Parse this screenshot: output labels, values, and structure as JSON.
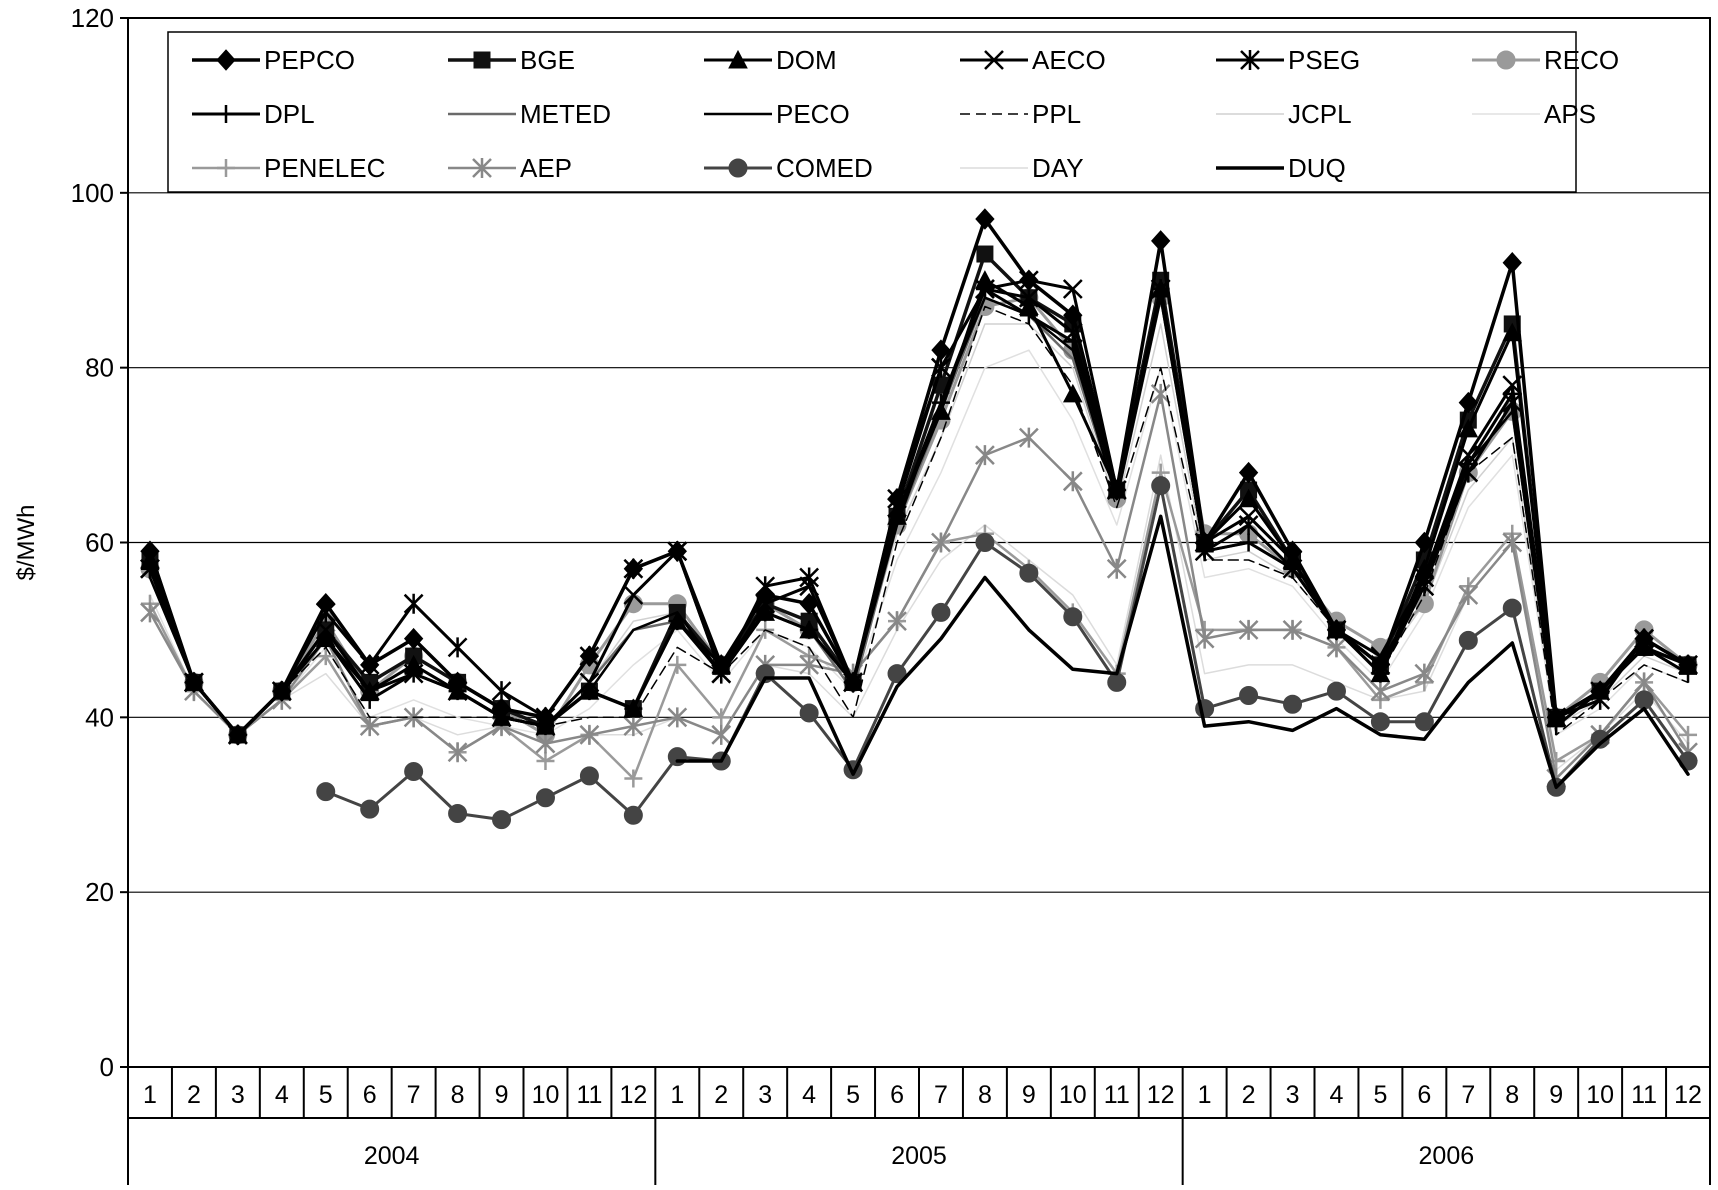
{
  "chart_data": {
    "type": "line",
    "title": "",
    "xlabel": "",
    "ylabel": "$/MWh",
    "ylim": [
      0,
      120
    ],
    "yticks": [
      0,
      20,
      40,
      60,
      80,
      100,
      120
    ],
    "grid": "horizontal",
    "legend_position": "top",
    "years": [
      {
        "label": "2004",
        "months": 12
      },
      {
        "label": "2005",
        "months": 12
      },
      {
        "label": "2006",
        "months": 12
      }
    ],
    "categories": [
      "1",
      "2",
      "3",
      "4",
      "5",
      "6",
      "7",
      "8",
      "9",
      "10",
      "11",
      "12",
      "1",
      "2",
      "3",
      "4",
      "5",
      "6",
      "7",
      "8",
      "9",
      "10",
      "11",
      "12",
      "1",
      "2",
      "3",
      "4",
      "5",
      "6",
      "7",
      "8",
      "9",
      "10",
      "11",
      "12"
    ],
    "series": [
      {
        "name": "PEPCO",
        "color": "#000000",
        "width": 3.5,
        "dash": "",
        "marker": "diamond",
        "values": [
          59,
          44,
          38,
          43,
          53,
          46,
          49,
          44,
          41,
          40,
          47,
          57,
          59,
          46,
          54,
          53,
          44,
          65,
          82,
          97,
          90,
          86,
          66,
          94.5,
          60,
          68,
          59,
          50,
          46,
          60,
          76,
          92,
          40,
          43,
          49,
          46
        ]
      },
      {
        "name": "BGE",
        "color": "#111111",
        "width": 3.5,
        "dash": "",
        "marker": "square",
        "values": [
          58,
          44,
          38,
          43,
          50,
          44,
          47,
          44,
          41,
          39,
          43,
          41,
          52,
          46,
          53,
          51,
          44,
          63,
          78,
          93,
          88,
          85,
          66,
          90,
          60,
          66,
          58,
          50,
          46,
          58,
          74,
          85,
          40,
          43,
          48,
          46
        ]
      },
      {
        "name": "DOM",
        "color": "#000000",
        "width": 3,
        "dash": "",
        "marker": "triangle",
        "values": [
          58,
          44,
          38,
          43,
          49,
          43,
          46,
          43,
          40,
          39,
          43,
          41,
          51,
          46,
          52,
          50,
          44,
          63,
          75,
          90,
          87,
          77,
          66,
          89,
          60,
          65,
          58,
          50,
          45,
          57,
          73,
          84,
          40,
          43,
          48,
          46
        ]
      },
      {
        "name": "AECO",
        "color": "#000000",
        "width": 3,
        "dash": "",
        "marker": "x",
        "values": [
          57,
          44,
          38,
          43,
          50,
          43,
          45,
          43,
          40,
          39,
          44,
          54,
          59,
          45,
          53,
          55,
          44,
          64,
          80,
          89,
          90,
          89,
          66,
          89,
          60,
          63,
          58,
          50,
          47,
          56,
          70,
          78,
          40,
          43,
          49,
          46
        ]
      },
      {
        "name": "PSEG",
        "color": "#000000",
        "width": 3,
        "dash": "",
        "marker": "star",
        "values": [
          57,
          44,
          38,
          43,
          52,
          46,
          53,
          48,
          43,
          40,
          47,
          57,
          59,
          45,
          55,
          56,
          44,
          65,
          80,
          89,
          88,
          84,
          66,
          89,
          59,
          62,
          57,
          50,
          46,
          55,
          68,
          76,
          40,
          42,
          49,
          46
        ]
      },
      {
        "name": "RECO",
        "color": "#9a9a9a",
        "width": 3,
        "dash": "",
        "marker": "circle",
        "values": [
          57,
          44,
          38,
          43,
          51,
          43,
          47,
          44,
          41,
          38,
          46,
          53,
          53,
          46,
          53,
          50,
          44,
          62,
          74,
          87,
          88,
          82,
          65,
          88,
          61,
          61,
          57,
          51,
          48,
          53,
          68,
          75,
          40,
          44,
          50,
          46
        ]
      },
      {
        "name": "DPL",
        "color": "#000000",
        "width": 3,
        "dash": "",
        "marker": "plus",
        "values": [
          57,
          44,
          38,
          43,
          49,
          42,
          45,
          43,
          40,
          39,
          43,
          41,
          51,
          45,
          52,
          50,
          44,
          63,
          76,
          89,
          86,
          83,
          66,
          89,
          59,
          60,
          57,
          50,
          45,
          56,
          69,
          77,
          39,
          43,
          48,
          45
        ]
      },
      {
        "name": "METED",
        "color": "#6a6a6a",
        "width": 2.5,
        "dash": "",
        "marker": "none",
        "values": [
          56,
          44,
          38,
          43,
          49,
          43,
          46,
          43,
          40,
          39,
          44,
          50,
          51,
          45,
          52,
          50,
          43,
          62,
          75,
          88,
          86,
          81,
          65,
          88,
          59,
          60,
          57,
          50,
          45,
          55,
          69,
          75,
          39,
          43,
          48,
          45
        ]
      },
      {
        "name": "PECO",
        "color": "#000000",
        "width": 2.5,
        "dash": "",
        "marker": "none",
        "values": [
          56,
          44,
          38,
          43,
          49,
          43,
          45,
          43,
          40,
          39,
          43,
          50,
          52,
          45,
          52,
          50,
          44,
          62,
          76,
          88,
          86,
          82,
          65,
          88,
          59,
          60,
          57,
          50,
          45,
          55,
          69,
          75,
          39,
          43,
          48,
          45
        ]
      },
      {
        "name": "PPL",
        "color": "#000000",
        "width": 1.5,
        "dash": "10 6",
        "marker": "none",
        "values": [
          56,
          44,
          38,
          43,
          48,
          40,
          40,
          40,
          40,
          39,
          40,
          40,
          48,
          45,
          50,
          48,
          40,
          60,
          72,
          87,
          85,
          78,
          64,
          80,
          58,
          58,
          56,
          50,
          45,
          54,
          68,
          72,
          38,
          42,
          46,
          44
        ]
      },
      {
        "name": "JCPL",
        "color": "#d0d0d0",
        "width": 1.5,
        "dash": "",
        "marker": "none",
        "values": [
          56,
          44,
          38,
          43,
          50,
          43,
          46,
          43,
          40,
          39,
          44,
          51,
          52,
          45,
          52,
          50,
          44,
          61,
          72,
          85,
          85,
          80,
          64,
          85,
          58,
          59,
          56,
          50,
          46,
          53,
          66,
          72,
          39,
          42,
          47,
          45
        ]
      },
      {
        "name": "APS",
        "color": "#e0e0e0",
        "width": 1.5,
        "dash": "",
        "marker": "none",
        "values": [
          54,
          43,
          38,
          42,
          48,
          40,
          42,
          40,
          39,
          38,
          41,
          46,
          50,
          44,
          50,
          48,
          43,
          58,
          68,
          80,
          82,
          74,
          62,
          80,
          56,
          57,
          55,
          49,
          44,
          52,
          64,
          70,
          38,
          41,
          46,
          44
        ]
      },
      {
        "name": "PENELEC",
        "color": "#9a9a9a",
        "width": 2.5,
        "dash": "",
        "marker": "plus",
        "values": [
          53,
          43,
          38,
          42,
          47,
          39,
          40,
          36,
          39,
          35,
          38,
          33,
          46,
          40,
          50,
          47,
          45,
          51,
          60,
          61,
          57,
          52,
          45,
          68,
          50,
          50,
          50,
          48,
          42,
          44,
          55,
          61,
          35,
          38,
          44,
          38
        ]
      },
      {
        "name": "AEP",
        "color": "#888888",
        "width": 2.5,
        "dash": "",
        "marker": "star",
        "values": [
          52,
          43,
          38,
          42,
          49,
          39,
          40,
          36,
          39,
          37,
          38,
          39,
          40,
          38,
          46,
          46,
          45,
          51,
          60,
          70,
          72,
          67,
          57,
          77,
          49,
          50,
          50,
          48,
          43,
          45,
          54,
          60,
          33,
          38,
          44,
          36
        ]
      },
      {
        "name": "COMED",
        "color": "#444444",
        "width": 3,
        "dash": "",
        "marker": "circle",
        "values": [
          null,
          null,
          null,
          null,
          31.5,
          29.5,
          33.8,
          29,
          28.3,
          30.8,
          33.3,
          28.8,
          35.5,
          35,
          45,
          40.5,
          34,
          45,
          52,
          60,
          56.5,
          51.5,
          44,
          66.5,
          41,
          42.5,
          41.5,
          43,
          39.5,
          39.5,
          48.8,
          52.5,
          32,
          37.5,
          42,
          35
        ]
      },
      {
        "name": "DAY",
        "color": "#dcdcdc",
        "width": 1.5,
        "dash": "",
        "marker": "none",
        "values": [
          52,
          43,
          38,
          42,
          45,
          39,
          40,
          38,
          39,
          37,
          38,
          38,
          40,
          38,
          46,
          45,
          40,
          50,
          58,
          62,
          58,
          54,
          46,
          70,
          45,
          46,
          46,
          44,
          42,
          43,
          54,
          60,
          34,
          38,
          43,
          37
        ]
      },
      {
        "name": "DUQ",
        "color": "#000000",
        "width": 3.5,
        "dash": "",
        "marker": "none",
        "values": [
          null,
          null,
          null,
          null,
          null,
          null,
          null,
          null,
          null,
          null,
          null,
          null,
          35,
          35,
          44.5,
          44.5,
          33.5,
          43.5,
          49,
          56,
          50,
          45.5,
          45,
          63,
          39,
          39.5,
          38.5,
          41,
          38,
          37.5,
          44,
          48.5,
          32,
          37,
          41,
          33.5
        ]
      }
    ]
  }
}
